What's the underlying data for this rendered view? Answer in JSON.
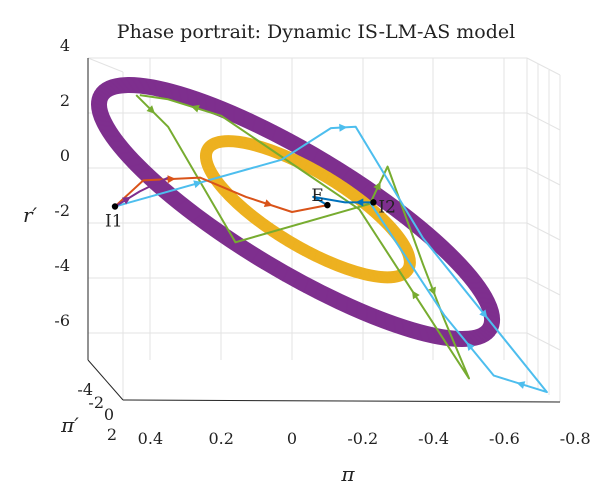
{
  "chart_data": {
    "type": "line",
    "title": "Phase portrait: Dynamic IS-LM-AS model",
    "xlabel": "π",
    "ylabel": "r′",
    "zlabel": "π′",
    "x_ticks": [
      "0.4",
      "0.2",
      "0",
      "-0.2",
      "-0.4",
      "-0.6",
      "-0.8"
    ],
    "x_tick_values": [
      0.4,
      0.2,
      0,
      -0.2,
      -0.4,
      -0.6,
      -0.8
    ],
    "y_ticks": [
      "4",
      "2",
      "0",
      "-2",
      "-4",
      "-6"
    ],
    "y_tick_values": [
      4,
      2,
      0,
      -2,
      -4,
      -6
    ],
    "z_ticks": [
      "-4",
      "-2",
      "0",
      "2"
    ],
    "z_tick_values": [
      -4,
      -2,
      0,
      2
    ],
    "xlim": [
      0.5,
      -0.8
    ],
    "ylim": [
      -7,
      4
    ],
    "grid": true,
    "points": [
      {
        "label": "E",
        "x": -0.1,
        "y": -1.35
      },
      {
        "label": "I1",
        "x": 0.5,
        "y": -1.4
      },
      {
        "label": "I2",
        "x": -0.23,
        "y": -1.25
      }
    ],
    "series": [
      {
        "color": "#7e2f8e",
        "kind": "band",
        "ellipse": {
          "cx": -0.01,
          "cy": -1.6,
          "a": 0.64,
          "b": 0.165,
          "angle_deg": 31,
          "width": 16
        }
      },
      {
        "color": "#edb120",
        "kind": "band",
        "ellipse": {
          "cx": -0.045,
          "cy": -1.5,
          "a": 0.33,
          "b": 0.105,
          "angle_deg": 31,
          "width": 12
        }
      },
      {
        "color": "#77ac30",
        "kind": "path",
        "x": [
          0.44,
          0.35,
          0.16,
          -0.22,
          -0.27,
          -0.37,
          -0.43,
          -0.5,
          -0.19,
          0.2,
          0.35,
          0.43
        ],
        "y": [
          2.65,
          1.5,
          -2.7,
          -1.3,
          0.05,
          -3.5,
          -5.5,
          -7.65,
          -1.5,
          1.9,
          2.5,
          2.65
        ],
        "arrows": [
          [
            0,
            1
          ],
          [
            3,
            4
          ],
          [
            5,
            6
          ],
          [
            7,
            8
          ],
          [
            9,
            10
          ]
        ]
      },
      {
        "color": "#4dbeee",
        "kind": "path",
        "x": [
          0.5,
          0.03,
          -0.11,
          -0.18,
          -0.37,
          -0.72,
          -0.57,
          -0.43,
          -0.22
        ],
        "y": [
          -1.4,
          0.3,
          1.45,
          1.5,
          -2.55,
          -8.15,
          -7.55,
          -5.35,
          -1.25
        ],
        "arrows": [
          [
            0,
            1
          ],
          [
            2,
            3
          ],
          [
            4,
            5
          ],
          [
            5,
            6
          ],
          [
            6,
            7
          ]
        ]
      },
      {
        "color": "#d95319",
        "kind": "path",
        "x": [
          0.5,
          0.42,
          0.26,
          0.13,
          0.0,
          -0.1
        ],
        "y": [
          -1.4,
          -0.45,
          -0.35,
          -1.05,
          -1.6,
          -1.35
        ],
        "arrows": [
          [
            1,
            2
          ],
          [
            3,
            4
          ]
        ]
      },
      {
        "color": "#0072bd",
        "kind": "path",
        "x": [
          -0.23,
          -0.15,
          -0.06,
          -0.1
        ],
        "y": [
          -1.25,
          -1.25,
          -1.05,
          -1.35
        ],
        "arrows": [
          [
            0,
            1
          ]
        ]
      },
      {
        "color": "#7e2f8e",
        "kind": "path",
        "x": [
          0.5,
          0.43,
          0.35
        ],
        "y": [
          -1.4,
          -0.85,
          -0.35
        ],
        "arrows": [
          [
            0,
            1
          ]
        ]
      }
    ]
  }
}
